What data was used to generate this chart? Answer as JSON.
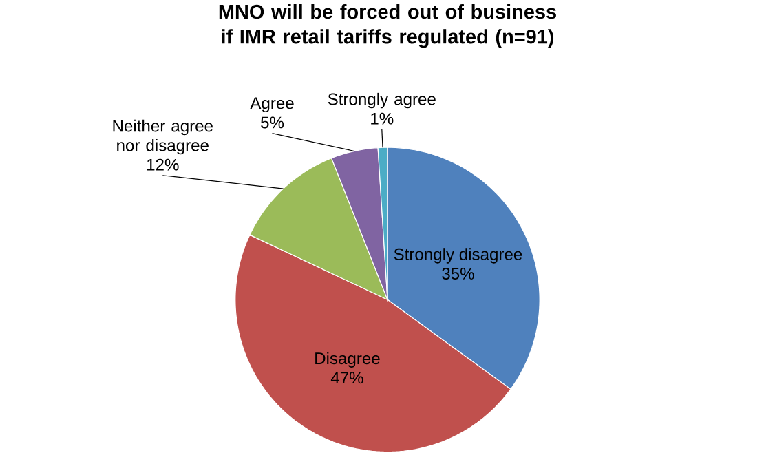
{
  "chart_data": {
    "type": "pie",
    "title": "MNO will be forced out of business if IMR retail tariffs regulated (n=91)",
    "categories": [
      "Strongly disagree",
      "Disagree",
      "Neither agree nor disagree",
      "Agree",
      "Strongly agree"
    ],
    "values": [
      35,
      47,
      12,
      5,
      1
    ],
    "value_labels": [
      "35%",
      "47%",
      "12%",
      "5%",
      "1%"
    ],
    "colors": [
      "#4f81bd",
      "#c0504d",
      "#9bbb59",
      "#8064a2",
      "#4bacc6"
    ]
  }
}
